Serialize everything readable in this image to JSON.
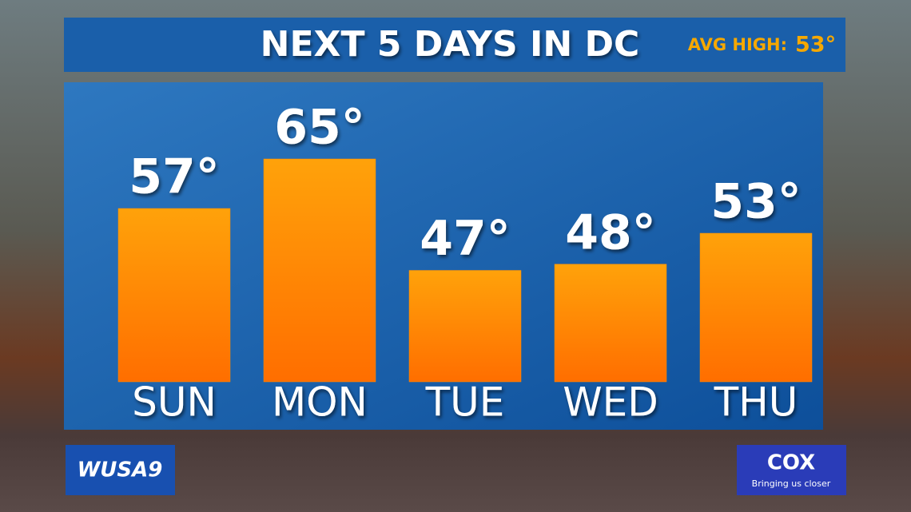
{
  "chart_data": {
    "type": "bar",
    "title": "NEXT 5 DAYS IN DC",
    "annotation_label": "AVG HIGH:",
    "annotation_value": "53°",
    "categories": [
      "SUN",
      "MON",
      "TUE",
      "WED",
      "THU"
    ],
    "values": [
      57,
      65,
      47,
      48,
      53
    ],
    "value_labels": [
      "57°",
      "65°",
      "47°",
      "48°",
      "53°"
    ],
    "color": "#ff8c00",
    "ylim": [
      29,
      77
    ],
    "grid": false
  },
  "logos": {
    "station": "WUSA9",
    "sponsor": "COX",
    "sponsor_tagline": "Bringing us closer"
  }
}
